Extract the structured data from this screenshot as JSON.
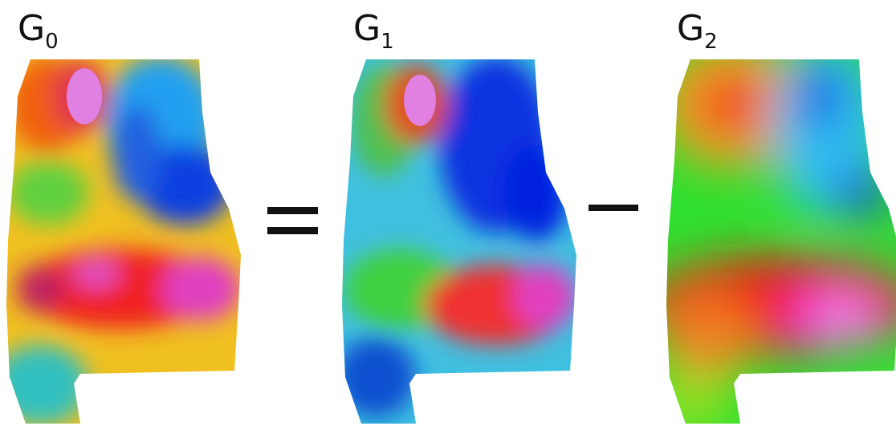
{
  "panels": [
    {
      "label": "G",
      "subscript": "0"
    },
    {
      "label": "G",
      "subscript": "1"
    },
    {
      "label": "G",
      "subscript": "2"
    }
  ]
}
